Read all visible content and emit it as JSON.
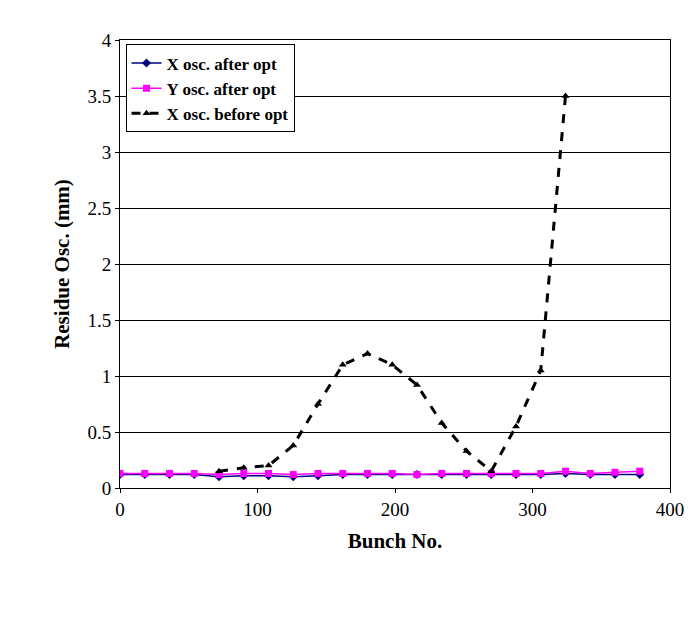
{
  "chart_data": {
    "type": "line",
    "x_label": "Bunch No.",
    "y_label": "Residue Osc. (mm)",
    "x": [
      0,
      18,
      36,
      54,
      72,
      90,
      108,
      126,
      144,
      162,
      180,
      198,
      216,
      234,
      252,
      270,
      288,
      306,
      324,
      342,
      360,
      378
    ],
    "series": [
      {
        "name": "X osc. after opt",
        "color": "#000080",
        "marker": "diamond",
        "line_style": "solid",
        "values": [
          0.12,
          0.12,
          0.12,
          0.12,
          0.1,
          0.11,
          0.11,
          0.1,
          0.11,
          0.12,
          0.12,
          0.12,
          0.12,
          0.12,
          0.12,
          0.12,
          0.12,
          0.12,
          0.13,
          0.12,
          0.12,
          0.12
        ]
      },
      {
        "name": "Y osc. after opt",
        "color": "#ff00ff",
        "marker": "square",
        "line_style": "solid",
        "values": [
          0.13,
          0.13,
          0.13,
          0.13,
          0.12,
          0.13,
          0.13,
          0.12,
          0.13,
          0.13,
          0.13,
          0.13,
          0.12,
          0.13,
          0.13,
          0.13,
          0.13,
          0.13,
          0.15,
          0.13,
          0.14,
          0.15
        ]
      },
      {
        "name": "X osc. before opt",
        "color": "#000000",
        "marker": "triangle",
        "line_style": "dash",
        "values": [
          null,
          null,
          null,
          null,
          0.15,
          0.18,
          0.2,
          0.38,
          0.75,
          1.1,
          1.2,
          1.1,
          0.92,
          0.58,
          0.33,
          0.15,
          0.55,
          1.05,
          3.5,
          null,
          null,
          null
        ]
      }
    ],
    "xlim": [
      0,
      400
    ],
    "xticks": [
      0,
      100,
      200,
      300,
      400
    ],
    "ylim": [
      0,
      4
    ],
    "yticks": [
      0,
      0.5,
      1,
      1.5,
      2,
      2.5,
      3,
      3.5,
      4
    ],
    "grid": true,
    "legend": "upper left"
  }
}
